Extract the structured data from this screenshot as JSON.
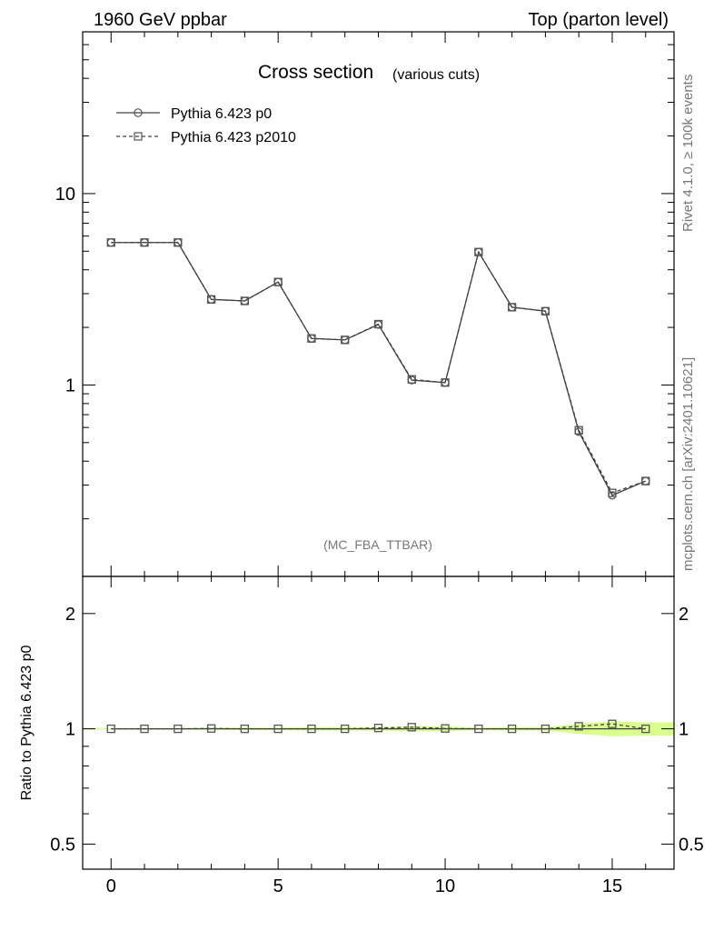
{
  "header": {
    "left": "1960 GeV ppbar",
    "right": "Top (parton level)"
  },
  "side_labels": {
    "rivet": "Rivet 4.1.0, ≥ 100k events",
    "mcplots": "mcplots.cern.ch [arXiv:2401.10621]"
  },
  "colors": {
    "series_line": "#404040",
    "marker": "#555555",
    "band": "#ccff66",
    "axis": "#000000"
  },
  "chart_data": [
    {
      "type": "line",
      "title": "Cross section",
      "subtitle": "(various cuts)",
      "analysis_tag": "(MC_FBA_TTBAR)",
      "yscale": "log",
      "xlim": [
        -0.85,
        16.85
      ],
      "ylim": [
        0.1,
        70
      ],
      "xticks": [
        0,
        5,
        10,
        15
      ],
      "yticks": [
        {
          "value": 1,
          "label": "1"
        },
        {
          "value": 10,
          "label": "10"
        }
      ],
      "legend": {
        "position": "top-left"
      },
      "x": [
        0,
        1,
        2,
        3,
        4,
        5,
        6,
        7,
        8,
        9,
        10,
        11,
        12,
        13,
        14,
        15,
        16
      ],
      "series": [
        {
          "name": "Pythia 6.423 p0",
          "marker": "circle",
          "dash": "solid",
          "values": [
            5.55,
            5.55,
            5.55,
            2.8,
            2.75,
            3.45,
            1.75,
            1.72,
            2.07,
            1.06,
            1.03,
            4.95,
            2.55,
            2.43,
            0.57,
            0.265,
            0.315
          ]
        },
        {
          "name": "Pythia 6.423 p2010",
          "marker": "square",
          "dash": "dashed",
          "values": [
            5.55,
            5.55,
            5.55,
            2.8,
            2.75,
            3.45,
            1.75,
            1.72,
            2.08,
            1.07,
            1.03,
            4.95,
            2.55,
            2.43,
            0.58,
            0.273,
            0.315
          ]
        }
      ]
    },
    {
      "type": "line",
      "ylabel": "Ratio to Pythia 6.423 p0",
      "yscale": "log",
      "xlim": [
        -0.85,
        16.85
      ],
      "ylim": [
        0.43,
        2.5
      ],
      "xticks": [
        0,
        5,
        10,
        15
      ],
      "xtick_labels": [
        "0",
        "5",
        "10",
        "15"
      ],
      "yticks": [
        {
          "value": 0.5,
          "label": "0.5"
        },
        {
          "value": 1,
          "label": "1"
        },
        {
          "value": 2,
          "label": "2"
        }
      ],
      "x": [
        0,
        1,
        2,
        3,
        4,
        5,
        6,
        7,
        8,
        9,
        10,
        11,
        12,
        13,
        14,
        15,
        16
      ],
      "band": {
        "lower": [
          0.995,
          0.995,
          0.995,
          0.993,
          0.993,
          0.993,
          0.99,
          0.99,
          0.99,
          0.985,
          0.985,
          0.993,
          0.99,
          0.99,
          0.97,
          0.955,
          0.96
        ],
        "upper": [
          1.005,
          1.005,
          1.005,
          1.007,
          1.007,
          1.007,
          1.01,
          1.01,
          1.01,
          1.015,
          1.015,
          1.007,
          1.01,
          1.01,
          1.03,
          1.045,
          1.04
        ]
      },
      "series": [
        {
          "name": "Pythia 6.423 p0",
          "marker": "none",
          "dash": "solid",
          "values": [
            1,
            1,
            1,
            1,
            1,
            1,
            1,
            1,
            1,
            1,
            1,
            1,
            1,
            1,
            1,
            1,
            1
          ]
        },
        {
          "name": "Pythia 6.423 p2010",
          "marker": "square",
          "dash": "dashed",
          "values": [
            1.0,
            1.0,
            1.0,
            1.002,
            1.0,
            1.0,
            1.0,
            1.0,
            1.005,
            1.01,
            1.002,
            1.0,
            1.0,
            1.0,
            1.015,
            1.03,
            1.0
          ]
        }
      ]
    }
  ]
}
